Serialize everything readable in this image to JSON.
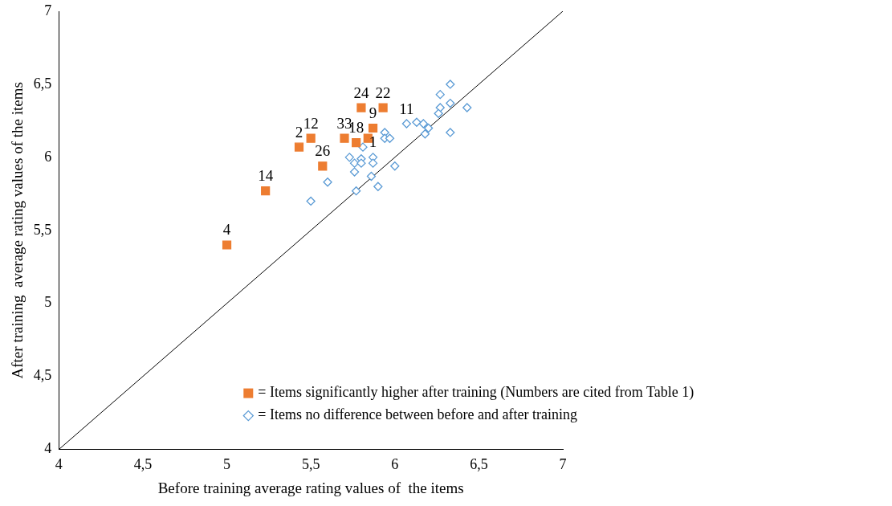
{
  "chart_data": {
    "type": "scatter",
    "xlabel": "Before training average rating values of  the items",
    "ylabel": "After training  average rating values of the items",
    "xlim": [
      4,
      7
    ],
    "ylim": [
      4,
      7
    ],
    "xticks": [
      4,
      {
        "value": 4.5,
        "label": "4,5"
      },
      5,
      {
        "value": 5.5,
        "label": "5,5"
      },
      6,
      {
        "value": 6.5,
        "label": "6,5"
      },
      7
    ],
    "yticks": [
      4,
      {
        "value": 4.5,
        "label": "4,5"
      },
      5,
      {
        "value": 5.5,
        "label": "5,5"
      },
      6,
      {
        "value": 6.5,
        "label": "6,5"
      },
      7
    ],
    "grid": false,
    "legend": "bottom right",
    "series": [
      {
        "name": "= Items significantly higher after training (Numbers are cited from Table 1)",
        "color": "#ed7d31",
        "marker": "square",
        "x": [
          5.0,
          5.23,
          5.43,
          5.5,
          5.57,
          5.7,
          5.77,
          5.84,
          5.87,
          5.8,
          5.93
        ],
        "values": [
          5.4,
          5.77,
          6.07,
          6.13,
          5.94,
          6.13,
          6.1,
          6.13,
          6.2,
          6.34,
          6.34
        ]
      },
      {
        "name": "= Items no difference between before and after training",
        "color": "#5b9bd5",
        "marker": "diamond",
        "x": [
          6.33,
          6.27,
          6.27,
          6.33,
          6.26,
          6.43,
          6.33,
          6.07,
          6.13,
          6.17,
          6.2,
          6.18,
          5.94,
          5.94,
          5.97,
          5.81,
          5.73,
          5.8,
          5.87,
          5.76,
          5.8,
          5.87,
          5.76,
          6.0,
          5.86,
          5.9,
          5.77,
          5.6,
          5.5
        ],
        "values": [
          6.5,
          6.43,
          6.34,
          6.37,
          6.3,
          6.34,
          6.17,
          6.23,
          6.24,
          6.23,
          6.2,
          6.16,
          6.17,
          6.13,
          6.13,
          6.07,
          6.0,
          5.99,
          6.0,
          5.96,
          5.96,
          5.96,
          5.9,
          5.94,
          5.87,
          5.8,
          5.77,
          5.83,
          5.7
        ]
      },
      {
        "type": "line",
        "color": "#000000",
        "marker": "none",
        "x": [
          4,
          7
        ],
        "values": [
          4,
          7
        ]
      }
    ],
    "annotations": [
      {
        "text": "4",
        "x": 5.0,
        "y": 5.4
      },
      {
        "text": "14",
        "x": 5.23,
        "y": 5.77
      },
      {
        "text": "2",
        "x": 5.43,
        "y": 6.07
      },
      {
        "text": "12",
        "x": 5.5,
        "y": 6.13
      },
      {
        "text": "26",
        "x": 5.57,
        "y": 5.94
      },
      {
        "text": "33",
        "x": 5.7,
        "y": 6.13
      },
      {
        "text": "18",
        "x": 5.77,
        "y": 6.1
      },
      {
        "text": "9",
        "x": 5.87,
        "y": 6.2
      },
      {
        "text": "24",
        "x": 5.8,
        "y": 6.34
      },
      {
        "text": "22",
        "x": 5.93,
        "y": 6.34
      },
      {
        "text": "11",
        "x": 6.07,
        "y": 6.23
      },
      {
        "text": "1",
        "x": 5.87,
        "y": 6.0
      }
    ]
  }
}
